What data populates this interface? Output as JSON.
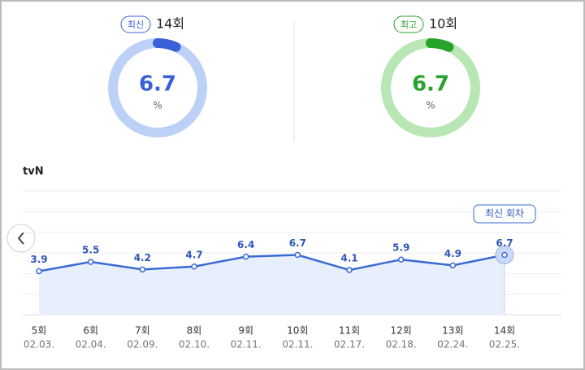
{
  "gauges": [
    {
      "badge": "최신",
      "episode": "14회",
      "value": 6.7,
      "unit": "%",
      "color": "#3b5fd9",
      "track_color": "#bdd0f6"
    },
    {
      "badge": "최고",
      "episode": "10회",
      "value": 6.7,
      "unit": "%",
      "color": "#27a22b",
      "track_color": "#b9e6b5"
    }
  ],
  "chart_data": {
    "type": "line",
    "channel": "tvN",
    "categories": [
      "5회",
      "6회",
      "7회",
      "8회",
      "9회",
      "10회",
      "11회",
      "12회",
      "13회",
      "14회"
    ],
    "dates": [
      "02.03.",
      "02.04.",
      "02.09.",
      "02.10.",
      "02.11.",
      "02.11.",
      "02.17.",
      "02.18.",
      "02.24.",
      "02.25."
    ],
    "values": [
      3.9,
      5.5,
      4.2,
      4.7,
      6.4,
      6.7,
      4.1,
      5.9,
      4.9,
      6.7
    ],
    "color": "#3a6ad4",
    "area_color": "#e8effc",
    "ylim": [
      -3.6,
      17.7
    ],
    "annotation": "최신 회차"
  }
}
